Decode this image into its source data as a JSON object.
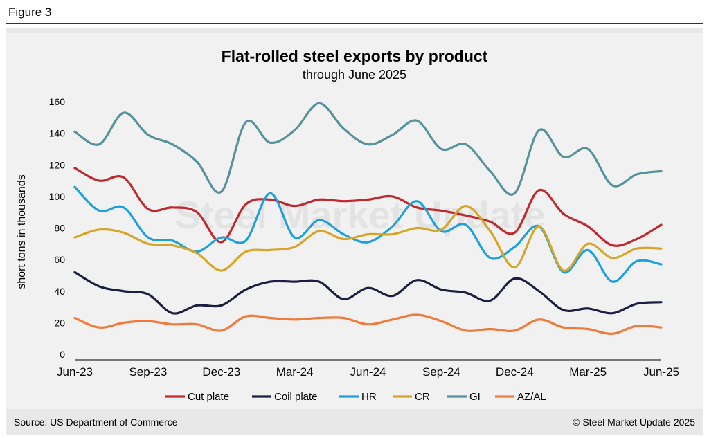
{
  "figure_label": "Figure 3",
  "footer": {
    "source": "Source: US Department of Commerce",
    "copyright": "© Steel Market Update 2025"
  },
  "watermark": "Steel Market Update",
  "chart_data": {
    "type": "line",
    "title": "Flat-rolled steel exports by product",
    "subtitle": "through June 2025",
    "xlabel": "",
    "ylabel": "short tons in thousands",
    "ylim": [
      0,
      160
    ],
    "yticks": [
      0,
      20,
      40,
      60,
      80,
      100,
      120,
      140,
      160
    ],
    "grid": false,
    "legend_position": "bottom",
    "categories": [
      "Jun-23",
      "Jul-23",
      "Aug-23",
      "Sep-23",
      "Oct-23",
      "Nov-23",
      "Dec-23",
      "Jan-24",
      "Feb-24",
      "Mar-24",
      "Apr-24",
      "May-24",
      "Jun-24",
      "Jul-24",
      "Aug-24",
      "Sep-24",
      "Oct-24",
      "Nov-24",
      "Dec-24",
      "Jan-25",
      "Feb-25",
      "Mar-25",
      "Apr-25",
      "May-25",
      "Jun-25"
    ],
    "tick_labels": [
      "Jun-23",
      "Sep-23",
      "Dec-23",
      "Mar-24",
      "Jun-24",
      "Sep-24",
      "Dec-24",
      "Mar-25",
      "Jun-25"
    ],
    "tick_indices": [
      0,
      3,
      6,
      9,
      12,
      15,
      18,
      21,
      24
    ],
    "series": [
      {
        "name": "Cut plate",
        "color": "#c0282d",
        "values": [
          118,
          110,
          112,
          92,
          93,
          90,
          71,
          95,
          98,
          94,
          98,
          97,
          98,
          100,
          93,
          91,
          88,
          84,
          77,
          104,
          89,
          81,
          69,
          73,
          82
        ]
      },
      {
        "name": "Coil plate",
        "color": "#1b1f3f",
        "values": [
          52,
          43,
          40,
          38,
          26,
          31,
          31,
          41,
          46,
          46,
          46,
          35,
          42,
          37,
          47,
          41,
          39,
          34,
          48,
          40,
          28,
          29,
          26,
          32,
          33
        ]
      },
      {
        "name": "HR",
        "color": "#1ca1dc",
        "values": [
          106,
          91,
          93,
          74,
          72,
          65,
          74,
          72,
          102,
          74,
          85,
          76,
          71,
          81,
          97,
          78,
          82,
          61,
          68,
          81,
          52,
          66,
          46,
          59,
          57
        ]
      },
      {
        "name": "CR",
        "color": "#d4a62a",
        "values": [
          74,
          79,
          77,
          70,
          69,
          64,
          53,
          65,
          66,
          68,
          78,
          73,
          76,
          76,
          80,
          79,
          94,
          78,
          55,
          81,
          53,
          70,
          61,
          67,
          67
        ]
      },
      {
        "name": "GI",
        "color": "#55929b",
        "values": [
          141,
          133,
          153,
          139,
          133,
          122,
          103,
          147,
          134,
          142,
          159,
          143,
          133,
          139,
          148,
          130,
          133,
          116,
          102,
          142,
          125,
          130,
          107,
          114,
          116
        ]
      },
      {
        "name": "AZ/AL",
        "color": "#ef7a39",
        "values": [
          23,
          17,
          20,
          21,
          19,
          19,
          15,
          24,
          23,
          22,
          23,
          23,
          19,
          22,
          25,
          21,
          15,
          16,
          15,
          22,
          17,
          16,
          13,
          18,
          17
        ]
      }
    ]
  }
}
